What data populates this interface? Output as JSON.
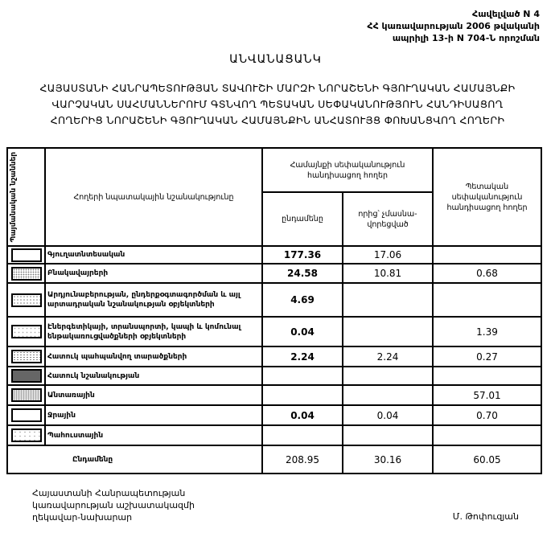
{
  "annex": {
    "line1": "Հավելված N 4",
    "line2": "ՀՀ կառավարության 2006 թվականի",
    "line3": "ապրիլի 13-ի N 704-Ն որոշման"
  },
  "title": "ԱՆՎԱՆԱՑԱՆԿ",
  "subtitle": {
    "line1": "ՀԱՅԱՍՏԱՆԻ ՀԱՆՐԱՊԵՏՈՒԹՅԱՆ ՏԱՎՈՒՇԻ ՄԱՐԶԻ ՆՈՐԱՇԵՆԻ ԳՅՈՒՂԱԿԱՆ ՀԱՄԱՅՆՔԻ",
    "line2": "ՎԱՐՉԱԿԱՆ ՍԱՀՄԱՆՆԵՐՈՒՄ ԳՏՆՎՈՂ ՊԵՏԱԿԱՆ ՍԵՓԱԿԱՆՈՒԹՅՈՒՆ ՀԱՆԴԻՍԱՑՈՂ",
    "line3": "ՀՈՂԵՐԻՑ ՆՈՐԱՇԵՆԻ ԳՅՈՒՂԱԿԱՆ ՀԱՄԱՅՆՔԻՆ ԱՆՀԱՏՈՒՅՑ ՓՈԽԱՆՑՎՈՂ ՀՈՂԵՐԻ"
  },
  "table": {
    "headers": {
      "legend": "Պայմանական նշաններ",
      "purpose": "Հողերի նպատակային նշանակությունը",
      "community": "Համայնքի սեփականություն հանդիսացող հողեր",
      "total": "ընդամենը",
      "unprivatized": "որից՝ չմասնա-վորեցված",
      "state": "Պետական սեփականություն հանդիսացող հողեր"
    },
    "rows": [
      {
        "label": "Գյուղատնտեսական",
        "total": "177.36",
        "unprivatized": "17.06",
        "state": "",
        "pattern": "p1"
      },
      {
        "label": "Բնակավայրերի",
        "total": "24.58",
        "unprivatized": "10.81",
        "state": "0.68",
        "pattern": "p2"
      },
      {
        "label": "Արդյունաբերության, ընդերքօգտագործման և այլ արտադրական նշանակության օբյեկտների",
        "total": "4.69",
        "unprivatized": "",
        "state": "",
        "pattern": "p3"
      },
      {
        "label": "Էներգետիկայի, տրանսպորտի, կապի և կոմունալ ենթակառուցվածքների օբյեկտների",
        "total": "0.04",
        "unprivatized": "",
        "state": "1.39",
        "pattern": "p4"
      },
      {
        "label": "Հատուկ պահպանվող տարածքների",
        "total": "2.24",
        "unprivatized": "2.24",
        "state": "0.27",
        "pattern": "p5"
      },
      {
        "label": "Հատուկ նշանակության",
        "total": "",
        "unprivatized": "",
        "state": "",
        "pattern": "p6"
      },
      {
        "label": "Անտառային",
        "total": "",
        "unprivatized": "",
        "state": "57.01",
        "pattern": "p7"
      },
      {
        "label": "Ջրային",
        "total": "0.04",
        "unprivatized": "0.04",
        "state": "0.70",
        "pattern": "p1"
      },
      {
        "label": "Պահուստային",
        "total": "",
        "unprivatized": "",
        "state": "",
        "pattern": "p8"
      }
    ],
    "sum": {
      "label": "Ընդամենը",
      "total": "208.95",
      "unprivatized": "30.16",
      "state": "60.05"
    }
  },
  "footer": {
    "position_line1": "Հայաստանի Հանրապետության",
    "position_line2": "կառավարության աշխատակազմի",
    "position_line3": "ղեկավար-նախարար",
    "signatory": "Մ. Թոփուզյան"
  }
}
